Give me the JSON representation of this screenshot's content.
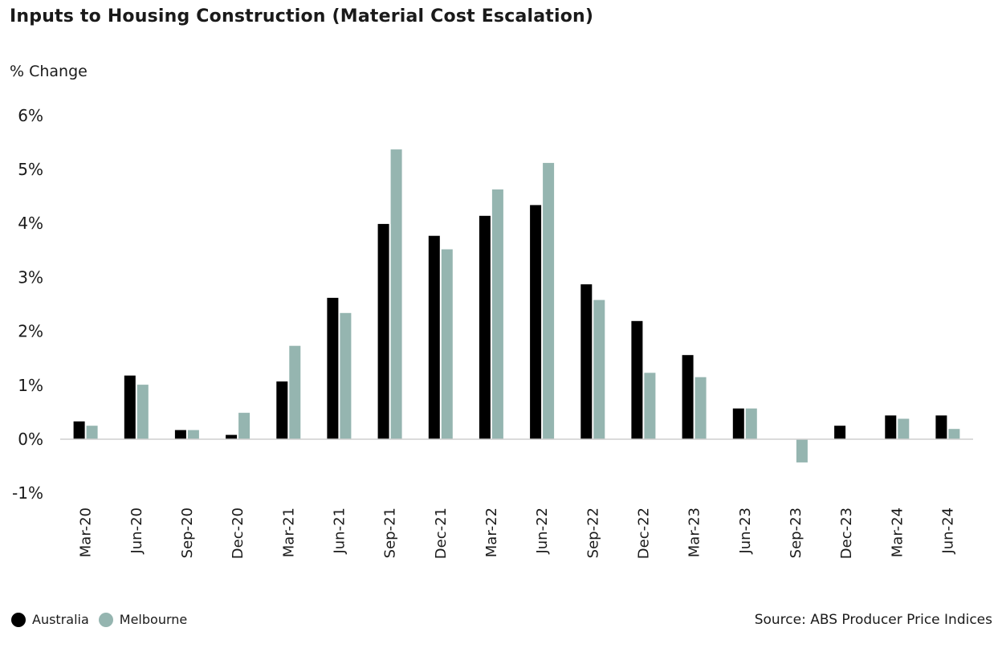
{
  "chart_data": {
    "type": "bar",
    "title": "Inputs to Housing Construction (Material Cost Escalation)",
    "ylabel": "% Change",
    "xlabel": "",
    "ylim": [
      -1,
      6
    ],
    "yticks": [
      "6%",
      "5%",
      "4%",
      "3%",
      "2%",
      "1%",
      "0%",
      "-1%"
    ],
    "ytick_values": [
      6,
      5,
      4,
      3,
      2,
      1,
      0,
      -1
    ],
    "categories": [
      "Mar-20",
      "Jun-20",
      "Sep-20",
      "Dec-20",
      "Mar-21",
      "Jun-21",
      "Sep-21",
      "Dec-21",
      "Mar-22",
      "Jun-22",
      "Sep-22",
      "Dec-22",
      "Mar-23",
      "Jun-23",
      "Sep-23",
      "Dec-23",
      "Mar-24",
      "Jun-24"
    ],
    "series": [
      {
        "name": "Australia",
        "color": "#000000",
        "values": [
          0.33,
          1.18,
          0.17,
          0.08,
          1.07,
          2.62,
          3.99,
          3.77,
          4.14,
          4.34,
          2.87,
          2.19,
          1.56,
          0.57,
          0.0,
          0.25,
          0.44,
          0.44
        ]
      },
      {
        "name": "Melbourne",
        "color": "#95b5b0",
        "values": [
          0.25,
          1.01,
          0.17,
          0.49,
          1.73,
          2.34,
          5.37,
          3.52,
          4.63,
          5.12,
          2.58,
          1.23,
          1.15,
          0.57,
          -0.43,
          0.0,
          0.38,
          0.19
        ]
      }
    ],
    "grid": false,
    "legend_position": "bottom-left"
  },
  "source": "Source: ABS Producer Price Indices"
}
